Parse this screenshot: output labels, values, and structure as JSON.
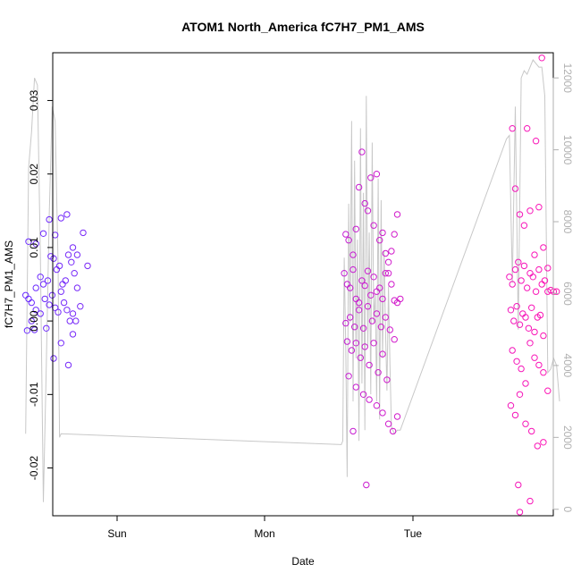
{
  "chart_data": {
    "type": "scatter",
    "title": "ATOM1 North_America fC7H7_PM1_AMS",
    "xlabel": "Date",
    "ylabel": "fC7H7_PM1_AMS",
    "x_ticks": [
      "Sun",
      "Mon",
      "Tue"
    ],
    "ylim": [
      -0.0265,
      0.0365
    ],
    "y_ticks": [
      "-0.02",
      "-0.01",
      "0.00",
      "0.01",
      "0.02",
      "0.03"
    ],
    "y2_label": "",
    "y2lim": [
      -180,
      12700
    ],
    "y2_ticks": [
      "0",
      "2000",
      "4000",
      "6000",
      "8000",
      "10000",
      "12000"
    ],
    "colors": {
      "points_start": "#6a2cff",
      "points_end": "#ff14b4",
      "altitude_line": "#c8c8c8",
      "axis": "#000000",
      "right_axis": "#b0b0b0"
    },
    "series": [
      {
        "kind": "points",
        "note_axis": "left",
        "points": [
          [
            -0.6,
            0.0108
          ],
          [
            -0.55,
            0.0105
          ],
          [
            -0.5,
            0.0119
          ],
          [
            -0.46,
            0.0138
          ],
          [
            -0.42,
            0.0117
          ],
          [
            -0.38,
            0.014
          ],
          [
            -0.34,
            0.0145
          ],
          [
            -0.3,
            0.01
          ],
          [
            -0.27,
            0.009
          ],
          [
            -0.23,
            0.012
          ],
          [
            -0.2,
            0.0075
          ],
          [
            -0.62,
            0.0035
          ],
          [
            -0.6,
            0.003
          ],
          [
            -0.58,
            0.0025
          ],
          [
            -0.55,
            0.0045
          ],
          [
            -0.52,
            0.006
          ],
          [
            -0.5,
            0.005
          ],
          [
            -0.47,
            0.0055
          ],
          [
            -0.45,
            0.0088
          ],
          [
            -0.43,
            0.0085
          ],
          [
            -0.41,
            0.007
          ],
          [
            -0.39,
            0.0075
          ],
          [
            -0.37,
            0.005
          ],
          [
            -0.35,
            0.0055
          ],
          [
            -0.33,
            0.009
          ],
          [
            -0.31,
            0.008
          ],
          [
            -0.29,
            0.0065
          ],
          [
            -0.27,
            0.0045
          ],
          [
            -0.25,
            0.002
          ],
          [
            -0.61,
            -0.0013
          ],
          [
            -0.58,
            0.0
          ],
          [
            -0.55,
            0.0015
          ],
          [
            -0.52,
            0.001
          ],
          [
            -0.49,
            0.003
          ],
          [
            -0.46,
            0.0022
          ],
          [
            -0.44,
            0.0035
          ],
          [
            -0.42,
            0.0018
          ],
          [
            -0.4,
            0.0012
          ],
          [
            -0.38,
            0.004
          ],
          [
            -0.36,
            0.0025
          ],
          [
            -0.34,
            0.0015
          ],
          [
            -0.32,
            0.0
          ],
          [
            -0.3,
            0.001
          ],
          [
            -0.28,
            0.0
          ],
          [
            -0.56,
            -0.0012
          ],
          [
            -0.48,
            -0.001
          ],
          [
            -0.43,
            -0.0051
          ],
          [
            -0.38,
            -0.003
          ],
          [
            -0.33,
            -0.006
          ],
          [
            -0.3,
            -0.0018
          ],
          [
            1.55,
            0.0118
          ],
          [
            1.57,
            0.011
          ],
          [
            1.6,
            0.009
          ],
          [
            1.62,
            0.0125
          ],
          [
            1.64,
            0.0182
          ],
          [
            1.66,
            0.023
          ],
          [
            1.68,
            0.016
          ],
          [
            1.7,
            0.015
          ],
          [
            1.72,
            0.0195
          ],
          [
            1.74,
            0.013
          ],
          [
            1.76,
            0.02
          ],
          [
            1.78,
            0.011
          ],
          [
            1.8,
            0.012
          ],
          [
            1.82,
            0.0092
          ],
          [
            1.84,
            0.008
          ],
          [
            1.86,
            0.0095
          ],
          [
            1.88,
            0.0118
          ],
          [
            1.9,
            0.0145
          ],
          [
            1.54,
            0.0065
          ],
          [
            1.56,
            0.005
          ],
          [
            1.58,
            0.0045
          ],
          [
            1.6,
            0.007
          ],
          [
            1.62,
            0.003
          ],
          [
            1.64,
            0.0025
          ],
          [
            1.66,
            0.0055
          ],
          [
            1.68,
            0.0048
          ],
          [
            1.7,
            0.0068
          ],
          [
            1.72,
            0.0035
          ],
          [
            1.74,
            0.006
          ],
          [
            1.76,
            0.004
          ],
          [
            1.78,
            0.0045
          ],
          [
            1.8,
            0.003
          ],
          [
            1.82,
            0.0065
          ],
          [
            1.84,
            0.0065
          ],
          [
            1.86,
            0.005
          ],
          [
            1.88,
            0.0028
          ],
          [
            1.9,
            0.0025
          ],
          [
            1.92,
            0.003
          ],
          [
            1.55,
            -0.0003
          ],
          [
            1.58,
            0.0005
          ],
          [
            1.61,
            -0.0008
          ],
          [
            1.64,
            0.0015
          ],
          [
            1.67,
            -0.001
          ],
          [
            1.7,
            0.002
          ],
          [
            1.73,
            0.0
          ],
          [
            1.76,
            0.001
          ],
          [
            1.79,
            -0.0008
          ],
          [
            1.82,
            0.0005
          ],
          [
            1.85,
            -0.0012
          ],
          [
            1.88,
            -0.0025
          ],
          [
            1.56,
            -0.0028
          ],
          [
            1.59,
            -0.004
          ],
          [
            1.62,
            -0.003
          ],
          [
            1.65,
            -0.005
          ],
          [
            1.68,
            -0.0035
          ],
          [
            1.71,
            -0.006
          ],
          [
            1.74,
            -0.003
          ],
          [
            1.77,
            -0.007
          ],
          [
            1.8,
            -0.0045
          ],
          [
            1.83,
            -0.008
          ],
          [
            1.57,
            -0.0075
          ],
          [
            1.62,
            -0.009
          ],
          [
            1.67,
            -0.01
          ],
          [
            1.71,
            -0.0107
          ],
          [
            1.76,
            -0.0115
          ],
          [
            1.8,
            -0.0125
          ],
          [
            1.84,
            -0.014
          ],
          [
            1.87,
            -0.015
          ],
          [
            1.9,
            -0.013
          ],
          [
            1.6,
            -0.015
          ],
          [
            1.69,
            -0.0223
          ],
          [
            2.68,
            0.0262
          ],
          [
            2.78,
            0.0262
          ],
          [
            2.84,
            0.0245
          ],
          [
            2.88,
            0.0358
          ],
          [
            2.7,
            0.018
          ],
          [
            2.73,
            0.0145
          ],
          [
            2.76,
            0.013
          ],
          [
            2.8,
            0.015
          ],
          [
            2.83,
            0.009
          ],
          [
            2.86,
            0.0155
          ],
          [
            2.89,
            0.01
          ],
          [
            2.92,
            0.0072
          ],
          [
            2.66,
            0.006
          ],
          [
            2.68,
            0.005
          ],
          [
            2.7,
            0.007
          ],
          [
            2.72,
            0.008
          ],
          [
            2.74,
            0.0055
          ],
          [
            2.76,
            0.0075
          ],
          [
            2.78,
            0.0045
          ],
          [
            2.8,
            0.0065
          ],
          [
            2.82,
            0.006
          ],
          [
            2.84,
            0.004
          ],
          [
            2.86,
            0.007
          ],
          [
            2.88,
            0.005
          ],
          [
            2.9,
            0.0055
          ],
          [
            2.92,
            0.004
          ],
          [
            2.94,
            0.0042
          ],
          [
            2.96,
            0.004
          ],
          [
            2.98,
            0.004
          ],
          [
            2.67,
            0.0015
          ],
          [
            2.69,
            0.0
          ],
          [
            2.71,
            0.002
          ],
          [
            2.73,
            -0.0005
          ],
          [
            2.75,
            0.001
          ],
          [
            2.77,
            0.0005
          ],
          [
            2.79,
            -0.001
          ],
          [
            2.81,
            0.0018
          ],
          [
            2.83,
            -0.0015
          ],
          [
            2.85,
            0.0005
          ],
          [
            2.87,
            0.0008
          ],
          [
            2.89,
            -0.002
          ],
          [
            2.68,
            -0.004
          ],
          [
            2.71,
            -0.0055
          ],
          [
            2.74,
            -0.0065
          ],
          [
            2.77,
            -0.0085
          ],
          [
            2.8,
            -0.003
          ],
          [
            2.83,
            -0.005
          ],
          [
            2.86,
            -0.006
          ],
          [
            2.89,
            -0.007
          ],
          [
            2.92,
            -0.0095
          ],
          [
            2.67,
            -0.0115
          ],
          [
            2.7,
            -0.0128
          ],
          [
            2.73,
            -0.01
          ],
          [
            2.77,
            -0.014
          ],
          [
            2.81,
            -0.015
          ],
          [
            2.85,
            -0.017
          ],
          [
            2.89,
            -0.0165
          ],
          [
            2.72,
            -0.0223
          ],
          [
            2.8,
            -0.0245
          ],
          [
            2.73,
            -0.026
          ]
        ]
      },
      {
        "kind": "line",
        "note_axis": "right",
        "points": [
          [
            -0.62,
            2100
          ],
          [
            -0.6,
            9500
          ],
          [
            -0.58,
            10500
          ],
          [
            -0.56,
            12000
          ],
          [
            -0.54,
            11800
          ],
          [
            -0.52,
            7000
          ],
          [
            -0.5,
            200
          ],
          [
            -0.48,
            4000
          ],
          [
            -0.46,
            8200
          ],
          [
            -0.44,
            11200
          ],
          [
            -0.42,
            10800
          ],
          [
            -0.4,
            6800
          ],
          [
            -0.39,
            2000
          ],
          [
            -0.38,
            2100
          ],
          [
            1.52,
            1800
          ],
          [
            1.53,
            1900
          ],
          [
            1.54,
            7000
          ],
          [
            1.55,
            4500
          ],
          [
            1.56,
            900
          ],
          [
            1.57,
            8500
          ],
          [
            1.58,
            5200
          ],
          [
            1.59,
            10800
          ],
          [
            1.6,
            3000
          ],
          [
            1.61,
            9700
          ],
          [
            1.62,
            4200
          ],
          [
            1.63,
            7500
          ],
          [
            1.64,
            1900
          ],
          [
            1.65,
            10600
          ],
          [
            1.66,
            3500
          ],
          [
            1.67,
            8800
          ],
          [
            1.68,
            2200
          ],
          [
            1.69,
            11500
          ],
          [
            1.7,
            4500
          ],
          [
            1.71,
            7700
          ],
          [
            1.72,
            3200
          ],
          [
            1.73,
            10200
          ],
          [
            1.74,
            5200
          ],
          [
            1.75,
            6000
          ],
          [
            1.76,
            3000
          ],
          [
            1.77,
            9200
          ],
          [
            1.78,
            2500
          ],
          [
            1.79,
            8600
          ],
          [
            1.8,
            4200
          ],
          [
            1.81,
            7200
          ],
          [
            1.82,
            5000
          ],
          [
            1.83,
            3300
          ],
          [
            1.84,
            6200
          ],
          [
            1.85,
            4000
          ],
          [
            1.86,
            2300
          ],
          [
            1.88,
            2100
          ],
          [
            1.9,
            2200
          ],
          [
            1.92,
            2200
          ],
          [
            2.64,
            10300
          ],
          [
            2.66,
            10400
          ],
          [
            2.68,
            6300
          ],
          [
            2.7,
            11200
          ],
          [
            2.72,
            5000
          ],
          [
            2.74,
            12000
          ],
          [
            2.76,
            12200
          ],
          [
            2.78,
            12100
          ],
          [
            2.8,
            12300
          ],
          [
            2.82,
            12500
          ],
          [
            2.84,
            12400
          ],
          [
            2.86,
            12300
          ],
          [
            2.88,
            12300
          ],
          [
            2.9,
            11500
          ],
          [
            2.92,
            3800
          ],
          [
            2.94,
            3900
          ],
          [
            2.96,
            4200
          ],
          [
            2.98,
            4000
          ],
          [
            3.0,
            3000
          ]
        ]
      }
    ]
  }
}
